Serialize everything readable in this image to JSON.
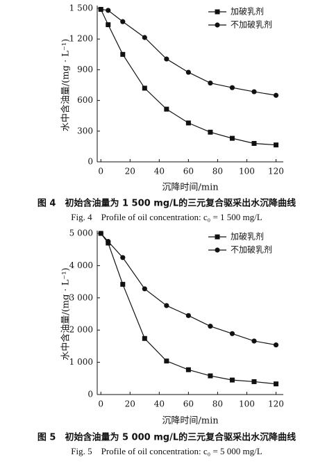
{
  "chart_data": [
    {
      "type": "line",
      "xlabel": "沉降时间/min",
      "ylabel": "水中含油量/(mg · L⁻¹)",
      "caption": "图 4　初始含油量为 1 500 mg/L的三元复合驱采出水沉降曲线",
      "caption_en": "Fig. 4　Profile of oil concentration: c₀ = 1 500 mg/L",
      "x": [
        0,
        5,
        15,
        30,
        45,
        60,
        75,
        90,
        105,
        120
      ],
      "series": [
        {
          "name": "加破乳剂",
          "color": "#111111",
          "marker": "square",
          "values": [
            1490,
            1340,
            1050,
            720,
            515,
            380,
            290,
            230,
            180,
            165
          ]
        },
        {
          "name": "不加破乳剂",
          "color": "#111111",
          "marker": "circle",
          "values": [
            1490,
            1480,
            1370,
            1215,
            1005,
            875,
            770,
            725,
            685,
            650
          ]
        }
      ],
      "xlim": [
        -2.5,
        125
      ],
      "xticks": [
        0,
        20,
        40,
        60,
        80,
        100,
        120
      ],
      "ylim": [
        0,
        1500
      ],
      "yticks": [
        0,
        300,
        600,
        900,
        {
          "value": 1200,
          "label": "1 200"
        },
        {
          "value": 1500,
          "label": "1 500"
        }
      ],
      "legend": "upper right"
    },
    {
      "type": "line",
      "xlabel": "沉降时间/min",
      "ylabel": "水中含油量/(mg · L⁻¹)",
      "caption": "图 5　初始含油量为 5 000 mg/L的三元复合驱采出水沉降曲线",
      "caption_en": "Fig. 5　Profile of oil concentration: c₀ = 5 000 mg/L",
      "x": [
        0,
        5,
        15,
        30,
        45,
        60,
        75,
        90,
        105,
        120
      ],
      "series": [
        {
          "name": "加破乳剂",
          "color": "#111111",
          "marker": "square",
          "values": [
            5000,
            4700,
            3420,
            1740,
            1040,
            770,
            580,
            450,
            400,
            330
          ]
        },
        {
          "name": "不加破乳剂",
          "color": "#111111",
          "marker": "circle",
          "values": [
            5000,
            4750,
            4250,
            3280,
            2760,
            2450,
            2120,
            1890,
            1660,
            1540
          ]
        }
      ],
      "xlim": [
        -2.5,
        125
      ],
      "xticks": [
        0,
        20,
        40,
        60,
        80,
        100,
        120
      ],
      "ylim": [
        0,
        5000
      ],
      "yticks": [
        0,
        {
          "value": 1000,
          "label": "1 000"
        },
        {
          "value": 2000,
          "label": "2 000"
        },
        {
          "value": 3000,
          "label": "3 000"
        },
        {
          "value": 4000,
          "label": "4 000"
        },
        {
          "value": 5000,
          "label": "5 000"
        }
      ],
      "legend": "upper right"
    }
  ]
}
